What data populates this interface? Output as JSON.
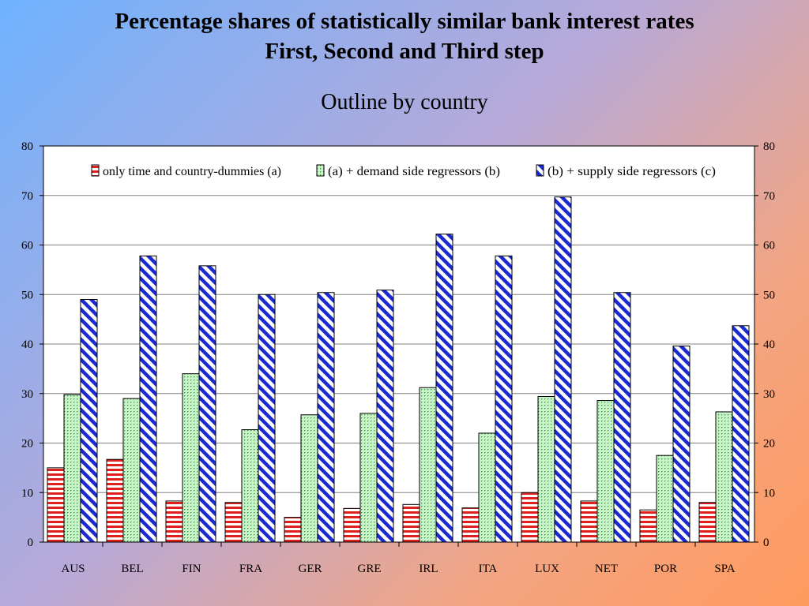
{
  "header": {
    "title_line1": "Percentage shares of statistically similar bank interest rates",
    "title_line2": "First, Second and Third step",
    "subtitle": "Outline by country"
  },
  "chart_data": {
    "type": "bar",
    "categories": [
      "AUS",
      "BEL",
      "FIN",
      "FRA",
      "GER",
      "GRE",
      "IRL",
      "ITA",
      "LUX",
      "NET",
      "POR",
      "SPA"
    ],
    "series": [
      {
        "name": "only time and country-dummies (a)",
        "values": [
          15.0,
          16.7,
          8.3,
          8.0,
          5.0,
          6.8,
          7.6,
          6.9,
          10.0,
          8.3,
          6.5,
          8.0
        ],
        "color": "#e0201c",
        "pattern": "horizontal-stripes"
      },
      {
        "name": "(a) + demand side regressors  (b)",
        "values": [
          29.8,
          29.0,
          34.0,
          22.7,
          25.7,
          26.0,
          31.2,
          22.0,
          29.4,
          28.6,
          17.5,
          26.3
        ],
        "color": "#20c030",
        "pattern": "dots"
      },
      {
        "name": "(b) + supply side regressors  (c)",
        "values": [
          49.0,
          57.8,
          55.8,
          50.0,
          50.4,
          50.9,
          62.2,
          57.8,
          69.7,
          50.4,
          39.6,
          43.7
        ],
        "color": "#1a2ad0",
        "pattern": "diagonal-stripes"
      }
    ],
    "y_ticks": [
      "0",
      "10",
      "20",
      "30",
      "40",
      "50",
      "60",
      "70",
      "80"
    ],
    "ylim": [
      0,
      80
    ],
    "dual_y_axis": true,
    "grid": true,
    "legend_position": "top"
  }
}
